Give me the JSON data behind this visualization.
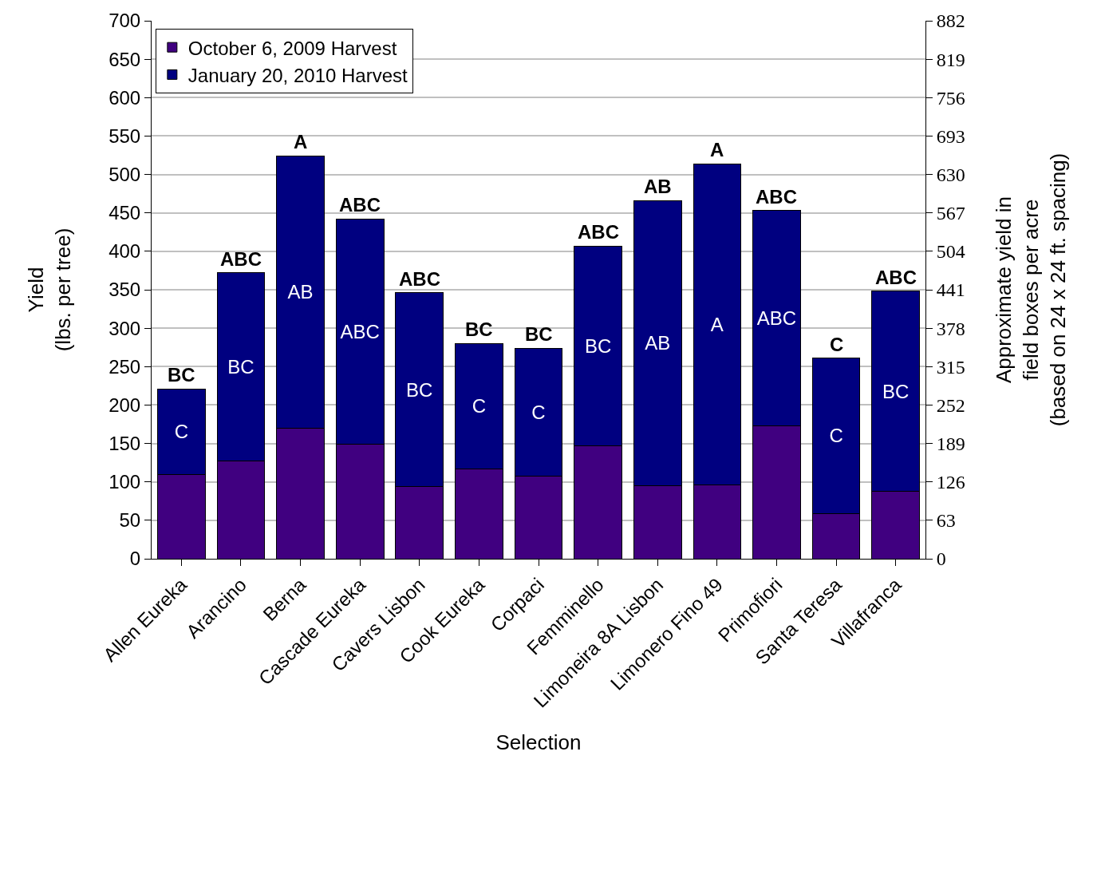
{
  "chart_data": {
    "type": "bar",
    "stacked": true,
    "xlabel": "Selection",
    "ylabel": "Yield\n(lbs. per tree)",
    "y2label": "Approximate yield in\nfield boxes per acre\n(based on 24 x 24 ft. spacing)",
    "categories": [
      "Allen Eureka",
      "Arancino",
      "Berna",
      "Cascade Eureka",
      "Cavers Lisbon",
      "Cook Eureka",
      "Corpaci",
      "Femminello",
      "Limoneira 8A Lisbon",
      "Limonero Fino 49",
      "Primofiori",
      "Santa Teresa",
      "Villafranca"
    ],
    "series": [
      {
        "name": "October 6, 2009 Harvest",
        "color": "#400080",
        "values": [
          110,
          127,
          170,
          149,
          94,
          117,
          108,
          147,
          95,
          96,
          173,
          59,
          88
        ]
      },
      {
        "name": "January 20, 2010 Harvest",
        "color": "#000080",
        "values": [
          111,
          245,
          354,
          293,
          252,
          163,
          166,
          260,
          371,
          418,
          280,
          202,
          260
        ],
        "value_labels": [
          "C",
          "BC",
          "AB",
          "ABC",
          "BC",
          "C",
          "C",
          "BC",
          "AB",
          "A",
          "ABC",
          "C",
          "BC"
        ]
      }
    ],
    "annotations": [
      {
        "text": "BC",
        "x": "Allen Eureka",
        "y": 221
      },
      {
        "text": "ABC",
        "x": "Arancino",
        "y": 372
      },
      {
        "text": "A",
        "x": "Berna",
        "y": 524
      },
      {
        "text": "ABC",
        "x": "Cascade Eureka",
        "y": 442
      },
      {
        "text": "ABC",
        "x": "Cavers Lisbon",
        "y": 346
      },
      {
        "text": "BC",
        "x": "Cook Eureka",
        "y": 280
      },
      {
        "text": "BC",
        "x": "Corpaci",
        "y": 274
      },
      {
        "text": "ABC",
        "x": "Femminello",
        "y": 407
      },
      {
        "text": "AB",
        "x": "Limoneira 8A Lisbon",
        "y": 466
      },
      {
        "text": "A",
        "x": "Limonero Fino 49",
        "y": 514
      },
      {
        "text": "ABC",
        "x": "Primofiori",
        "y": 453
      },
      {
        "text": "C",
        "x": "Santa Teresa",
        "y": 261
      },
      {
        "text": "ABC",
        "x": "Villafranca",
        "y": 348
      }
    ],
    "ylim": [
      0,
      700
    ],
    "yticks": [
      0,
      50,
      100,
      150,
      200,
      250,
      300,
      350,
      400,
      450,
      500,
      550,
      600,
      650,
      700
    ],
    "y2lim": [
      0,
      882
    ],
    "y2ticks": [
      0,
      63,
      126,
      189,
      252,
      315,
      378,
      441,
      504,
      567,
      630,
      693,
      756,
      819,
      882
    ],
    "grid": "y",
    "legend": "top left"
  }
}
